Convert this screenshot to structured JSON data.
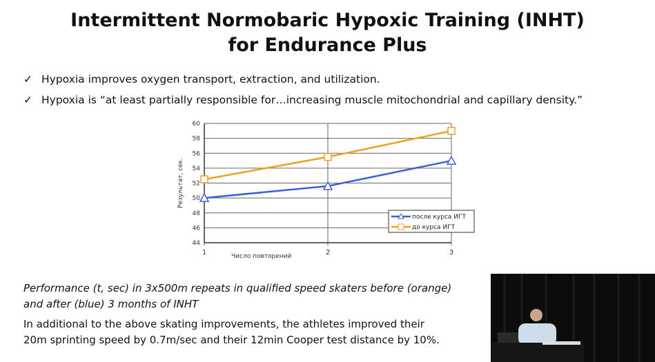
{
  "slide": {
    "title_line1": "Intermittent Normobaric Hypoxic Training (INHT)",
    "title_line2": "for Endurance Plus",
    "bullets": [
      "Hypoxia improves oxygen transport, extraction, and utilization.",
      "Hypoxia is “at least partially responsible for…increasing muscle mitochondrial and capillary density.”"
    ],
    "bullet_icon": "checkmark-icon",
    "caption_italic_1": "Performance (t, sec) in 3x500m repeats in qualified speed skaters before (orange)",
    "caption_italic_2": "and after (blue) 3 months of INHT",
    "note_1": "In additional to the above skating improvements, the athletes improved their",
    "note_2": "20m sprinting speed by 0.7m/sec and their 12min Cooper test distance by 10%."
  },
  "chart_data": {
    "type": "line",
    "x": [
      1,
      2,
      3
    ],
    "xlabel": "Число повторений",
    "ylabel": "Результат, сек.",
    "ylim": [
      44,
      60
    ],
    "yticks": [
      44,
      46,
      48,
      50,
      52,
      54,
      56,
      58,
      60
    ],
    "xticks": [
      1,
      2,
      3
    ],
    "grid": true,
    "legend": "bottom-right",
    "series": [
      {
        "name": "после курса ИГТ",
        "values": [
          50,
          51.6,
          55
        ],
        "color": "#3a5fd8",
        "marker": "triangle"
      },
      {
        "name": "до курса ИГТ",
        "values": [
          52.5,
          55.5,
          59
        ],
        "color": "#f0a020",
        "marker": "square"
      }
    ]
  }
}
